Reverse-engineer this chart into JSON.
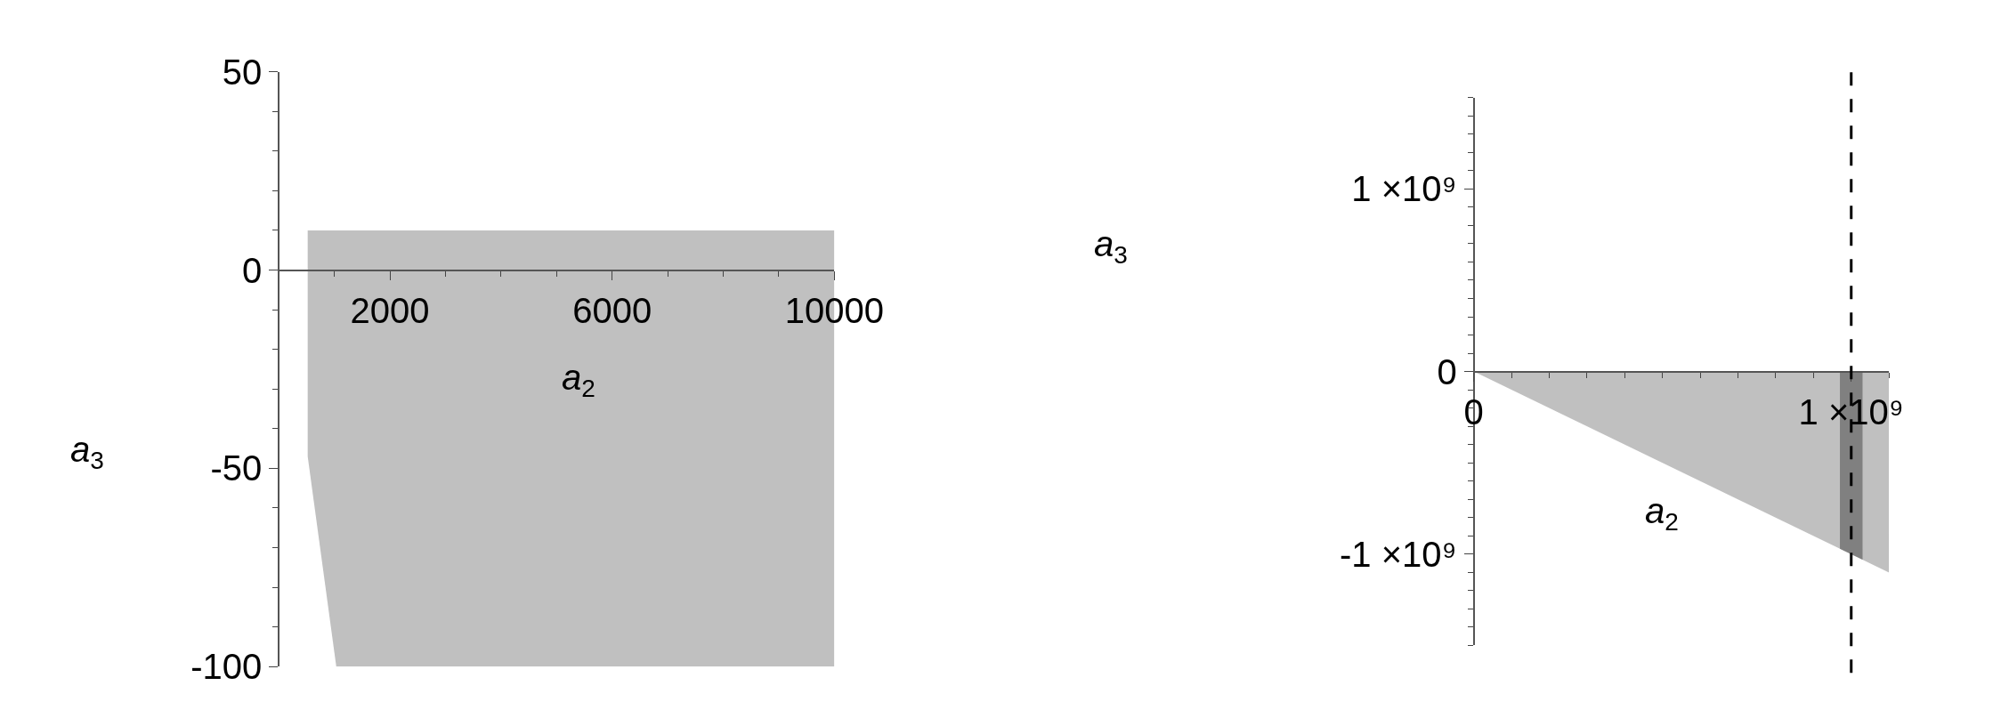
{
  "chart_data": [
    {
      "type": "area",
      "xlabel": "a$_{2}$",
      "ylabel": "a$_{3}$",
      "xlim": [
        0,
        10000
      ],
      "ylim": [
        -100,
        50
      ],
      "xticks": [
        2000,
        6000,
        10000
      ],
      "yticks": [
        -100,
        -50,
        0,
        50
      ],
      "series": [
        {
          "color": "#c0c0c0",
          "x": [
            520,
            10000
          ],
          "values": [
            10,
            10
          ]
        },
        {
          "color": "#c0c0c0",
          "x": [
            520,
            520,
            1035,
            10000
          ],
          "values": [
            0,
            -47,
            -100,
            -100
          ]
        }
      ]
    },
    {
      "type": "area",
      "xlabel": "a$_{2}$",
      "ylabel": "a$_{3}$",
      "xlim": [
        0,
        1100000000
      ],
      "ylim": [
        -1500000000,
        1500000000
      ],
      "xticks": [
        0,
        {
          "value": 1000000000,
          "label": "1 ×10⁹"
        }
      ],
      "yticks": [
        {
          "value": -1000000000,
          "label": "-1 ×10⁹"
        },
        0,
        {
          "value": 1000000000,
          "label": "1 ×10⁹"
        }
      ],
      "series": [
        {
          "color": "#c0c0c0",
          "x": [
            0,
            1100000000
          ],
          "values": [
            0,
            -1100000000
          ]
        },
        {
          "color": "#808080",
          "x": [
            970000000,
            1030000000
          ],
          "values": [
            -970000000,
            -1030000000
          ]
        }
      ],
      "ref_lines": [
        {
          "axis": "x",
          "value": 1000000000,
          "color": "#000000",
          "line_style": "dashed"
        }
      ]
    }
  ]
}
